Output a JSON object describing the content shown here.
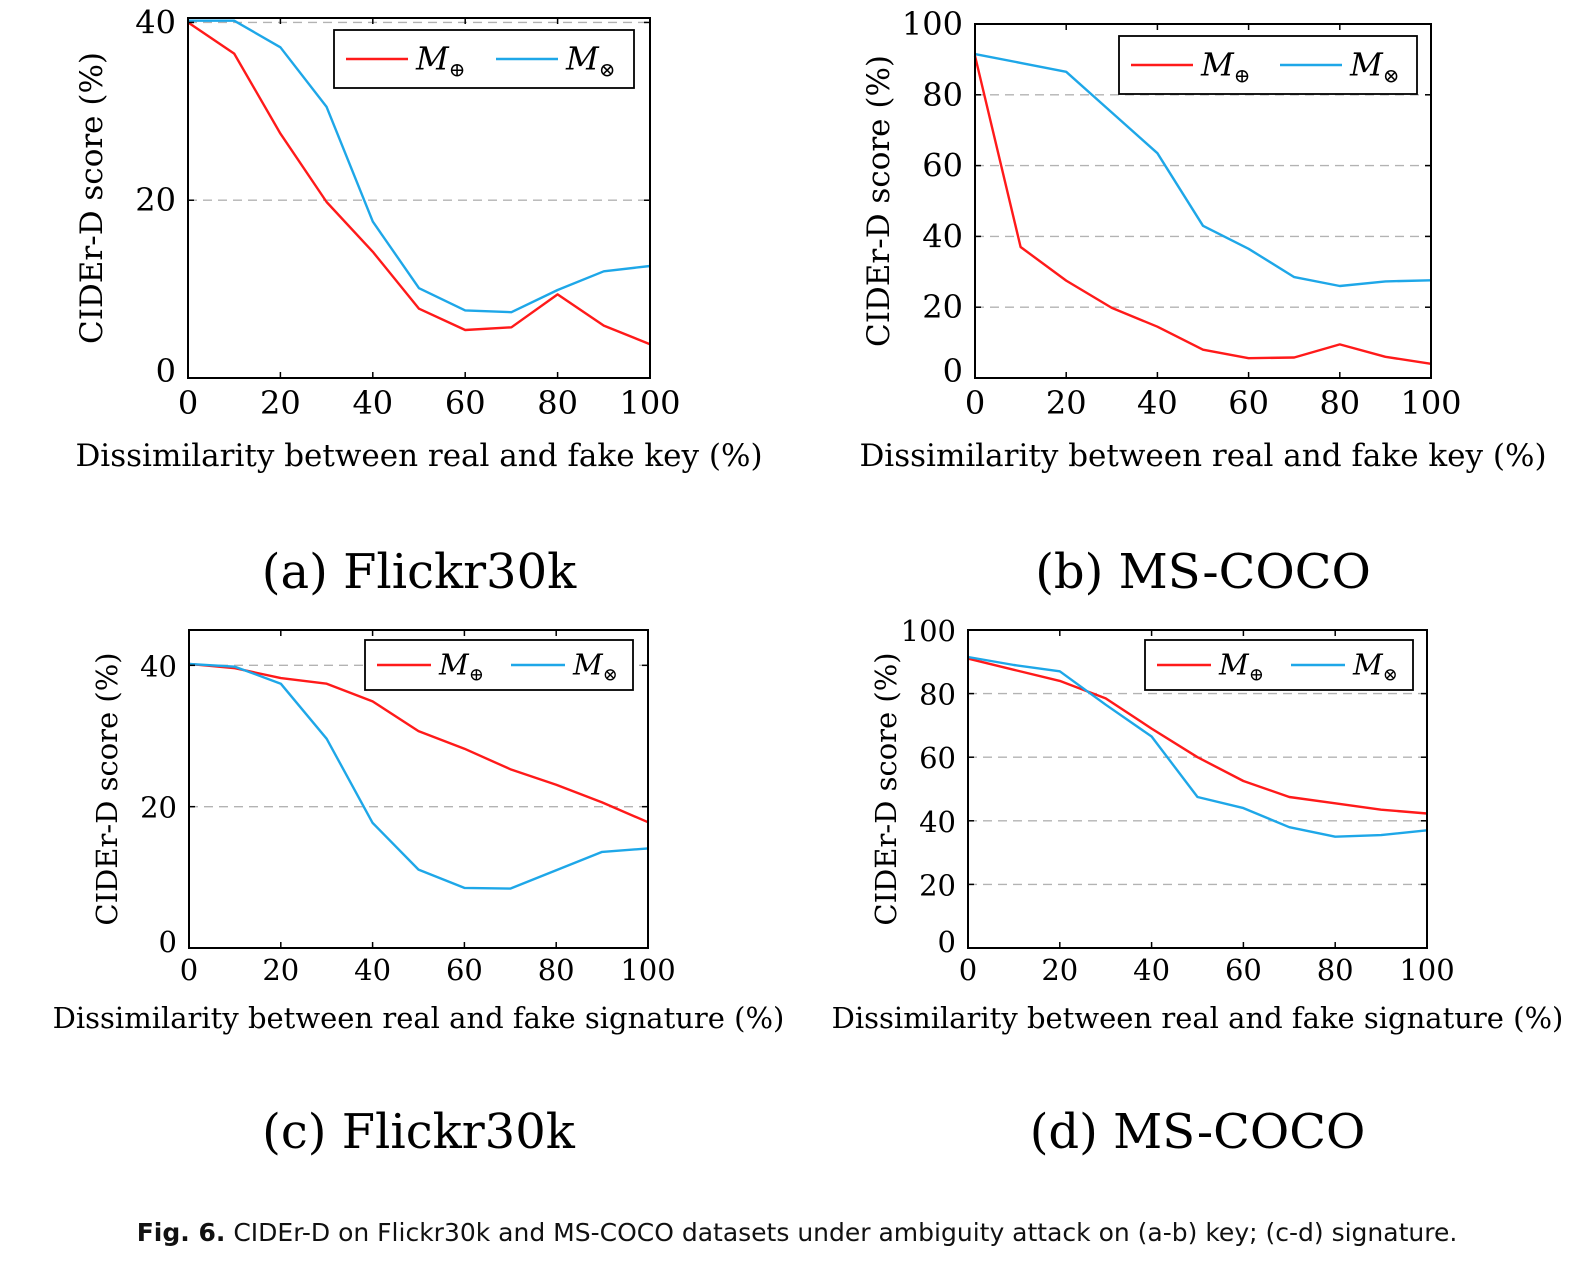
{
  "caption": {
    "label": "Fig. 6.",
    "text": "CIDEr-D on Flickr30k and MS-COCO datasets under ambiguity attack on (a-b) key; (c-d) signature."
  },
  "colors": {
    "m_plus": "#ff1a1a",
    "m_times": "#1ea7e8",
    "grid": "#b3b3b3",
    "axis": "#000000"
  },
  "chart_data": [
    {
      "type": "line",
      "subtitle": "(a) Flickr30k",
      "xlabel": "Dissimilarity between real and fake key (%)",
      "ylabel": "CIDEr-D score (%)",
      "xlim": [
        0,
        100
      ],
      "ylim": [
        0,
        40.5
      ],
      "xticks": [
        0,
        20,
        40,
        60,
        80,
        100
      ],
      "yticks": [
        0,
        20,
        40
      ],
      "grid_y": [
        20,
        40
      ],
      "legend": {
        "position": "top-right",
        "entries": [
          "M⊕",
          "M⊗"
        ]
      },
      "x": [
        0,
        10,
        20,
        30,
        40,
        50,
        60,
        70,
        80,
        90,
        100
      ],
      "series": [
        {
          "name": "M⊕",
          "color": "#ff1a1a",
          "values": [
            40,
            36.5,
            27.5,
            19.8,
            14.2,
            7.8,
            5.4,
            5.7,
            9.4,
            5.9,
            3.8
          ]
        },
        {
          "name": "M⊗",
          "color": "#1ea7e8",
          "values": [
            40.2,
            40.2,
            37.2,
            30.5,
            17.6,
            10.1,
            7.6,
            7.4,
            9.9,
            12,
            12.6
          ]
        }
      ]
    },
    {
      "type": "line",
      "subtitle": "(b) MS-COCO",
      "xlabel": "Dissimilarity between real and fake key (%)",
      "ylabel": "CIDEr-D score (%)",
      "xlim": [
        0,
        100
      ],
      "ylim": [
        0,
        100
      ],
      "xticks": [
        0,
        20,
        40,
        60,
        80,
        100
      ],
      "yticks": [
        0,
        20,
        40,
        60,
        80,
        100
      ],
      "grid_y": [
        20,
        40,
        60,
        80
      ],
      "legend": {
        "position": "top-right",
        "entries": [
          "M⊕",
          "M⊗"
        ]
      },
      "x": [
        0,
        10,
        20,
        30,
        40,
        50,
        60,
        70,
        80,
        90,
        100
      ],
      "series": [
        {
          "name": "M⊕",
          "color": "#ff1a1a",
          "values": [
            91,
            37,
            27.5,
            19.8,
            14.5,
            8,
            5.6,
            5.8,
            9.5,
            6,
            4
          ]
        },
        {
          "name": "M⊗",
          "color": "#1ea7e8",
          "values": [
            91.5,
            89,
            86.5,
            75,
            63.5,
            43,
            36.5,
            28.5,
            26,
            27.3,
            27.6
          ]
        }
      ]
    },
    {
      "type": "line",
      "subtitle": "(c) Flickr30k",
      "xlabel": "Dissimilarity between real and fake signature (%)",
      "ylabel": "CIDEr-D score (%)",
      "xlim": [
        0,
        100
      ],
      "ylim": [
        0,
        45
      ],
      "xticks": [
        0,
        20,
        40,
        60,
        80,
        100
      ],
      "yticks": [
        0,
        20,
        40
      ],
      "grid_y": [
        20,
        40
      ],
      "legend": {
        "position": "top-right",
        "entries": [
          "M⊕",
          "M⊗"
        ]
      },
      "x": [
        0,
        10,
        20,
        30,
        40,
        50,
        60,
        70,
        80,
        90,
        100
      ],
      "series": [
        {
          "name": "M⊕",
          "color": "#ff1a1a",
          "values": [
            40.2,
            39.6,
            38.2,
            37.4,
            34.9,
            30.7,
            28.2,
            25.3,
            23.1,
            20.6,
            17.8
          ]
        },
        {
          "name": "M⊗",
          "color": "#1ea7e8",
          "values": [
            40.2,
            39.8,
            37.4,
            29.6,
            17.7,
            11.1,
            8.5,
            8.4,
            11,
            13.6,
            14.1
          ]
        }
      ]
    },
    {
      "type": "line",
      "subtitle": "(d) MS-COCO",
      "xlabel": "Dissimilarity between real and fake signature (%)",
      "ylabel": "CIDEr-D score (%)",
      "xlim": [
        0,
        100
      ],
      "ylim": [
        0,
        100
      ],
      "xticks": [
        0,
        20,
        40,
        60,
        80,
        100
      ],
      "yticks": [
        0,
        20,
        40,
        60,
        80,
        100
      ],
      "grid_y": [
        20,
        40,
        60,
        80
      ],
      "legend": {
        "position": "top-right",
        "entries": [
          "M⊕",
          "M⊗"
        ]
      },
      "x": [
        0,
        10,
        20,
        30,
        40,
        50,
        60,
        70,
        80,
        90,
        100
      ],
      "series": [
        {
          "name": "M⊕",
          "color": "#ff1a1a",
          "values": [
            91,
            87.5,
            84,
            78.5,
            69,
            60,
            52.5,
            47.5,
            45.5,
            43.5,
            42.3
          ]
        },
        {
          "name": "M⊗",
          "color": "#1ea7e8",
          "values": [
            91.5,
            89,
            87,
            76.5,
            66.5,
            47.5,
            44,
            38,
            35,
            35.5,
            37
          ]
        }
      ]
    }
  ]
}
